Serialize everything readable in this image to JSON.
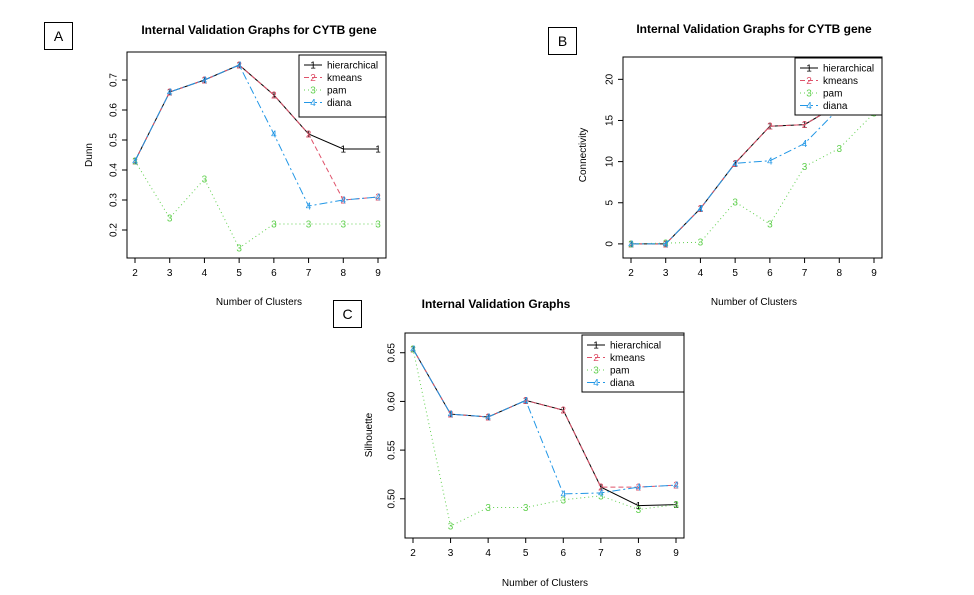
{
  "panels": [
    {
      "label": "A"
    },
    {
      "label": "B"
    },
    {
      "label": "C"
    }
  ],
  "chart_data": [
    {
      "type": "line",
      "title": "Internal Validation Graphs for CYTB gene",
      "xlabel": "Number of Clusters",
      "ylabel": "Dunn",
      "x": [
        2,
        3,
        4,
        5,
        6,
        7,
        8,
        9
      ],
      "xticks": [
        "2",
        "3",
        "4",
        "5",
        "6",
        "7",
        "8",
        "9"
      ],
      "yticks": [
        "0.2",
        "0.3",
        "0.4",
        "0.5",
        "0.6",
        "0.7"
      ],
      "ylim": [
        0.14,
        0.76
      ],
      "legend": "top-right",
      "series": [
        {
          "name": "hierarchical",
          "marker": "1",
          "color": "#000000",
          "values": [
            0.43,
            0.66,
            0.7,
            0.75,
            0.65,
            0.52,
            0.47,
            0.47
          ]
        },
        {
          "name": "kmeans",
          "marker": "2",
          "color": "#DF536B",
          "values": [
            0.43,
            0.66,
            0.7,
            0.75,
            0.65,
            0.52,
            0.3,
            0.31
          ]
        },
        {
          "name": "pam",
          "marker": "3",
          "color": "#61D04F",
          "values": [
            0.43,
            0.24,
            0.37,
            0.14,
            0.22,
            0.22,
            0.22,
            0.22
          ]
        },
        {
          "name": "diana",
          "marker": "4",
          "color": "#2297E6",
          "values": [
            0.43,
            0.66,
            0.7,
            0.75,
            0.52,
            0.28,
            0.3,
            0.31
          ]
        }
      ]
    },
    {
      "type": "line",
      "title": "Internal Validation Graphs for CYTB gene",
      "xlabel": "Number of Clusters",
      "ylabel": "Connectivity",
      "x": [
        2,
        3,
        4,
        5,
        6,
        7,
        8,
        9
      ],
      "xticks": [
        "2",
        "3",
        "4",
        "5",
        "6",
        "7",
        "8",
        "9"
      ],
      "yticks": [
        "0",
        "5",
        "10",
        "15",
        "20"
      ],
      "ylim": [
        -0.5,
        21.5
      ],
      "legend": "top-right",
      "series": [
        {
          "name": "hierarchical",
          "marker": "1",
          "color": "#000000",
          "values": [
            0,
            0,
            4.3,
            9.8,
            14.3,
            14.5,
            17.0,
            17.0
          ]
        },
        {
          "name": "kmeans",
          "marker": "2",
          "color": "#DF536B",
          "values": [
            0,
            0,
            4.3,
            9.8,
            14.3,
            14.5,
            17.0,
            17.0
          ]
        },
        {
          "name": "pam",
          "marker": "3",
          "color": "#61D04F",
          "values": [
            0,
            0.1,
            0.2,
            5.1,
            2.4,
            9.4,
            11.6,
            15.9
          ]
        },
        {
          "name": "diana",
          "marker": "4",
          "color": "#2297E6",
          "values": [
            0,
            0,
            4.3,
            9.8,
            10.1,
            12.2,
            16.5,
            17.0
          ]
        }
      ]
    },
    {
      "type": "line",
      "title": "Internal Validation Graphs",
      "xlabel": "Number of Clusters",
      "ylabel": "Silhouette",
      "x": [
        2,
        3,
        4,
        5,
        6,
        7,
        8,
        9
      ],
      "xticks": [
        "2",
        "3",
        "4",
        "5",
        "6",
        "7",
        "8",
        "9"
      ],
      "yticks": [
        "0.50",
        "0.55",
        "0.60",
        "0.65"
      ],
      "ylim": [
        0.47,
        0.66
      ],
      "legend": "top-right",
      "series": [
        {
          "name": "hierarchical",
          "marker": "1",
          "color": "#000000",
          "values": [
            0.654,
            0.587,
            0.584,
            0.601,
            0.591,
            0.512,
            0.493,
            0.494
          ]
        },
        {
          "name": "kmeans",
          "marker": "2",
          "color": "#DF536B",
          "values": [
            0.654,
            0.587,
            0.584,
            0.601,
            0.591,
            0.512,
            0.512,
            0.514
          ]
        },
        {
          "name": "pam",
          "marker": "3",
          "color": "#61D04F",
          "values": [
            0.654,
            0.472,
            0.491,
            0.491,
            0.499,
            0.503,
            0.489,
            0.494
          ]
        },
        {
          "name": "diana",
          "marker": "4",
          "color": "#2297E6",
          "values": [
            0.654,
            0.587,
            0.584,
            0.601,
            0.505,
            0.506,
            0.512,
            0.514
          ]
        }
      ]
    }
  ]
}
